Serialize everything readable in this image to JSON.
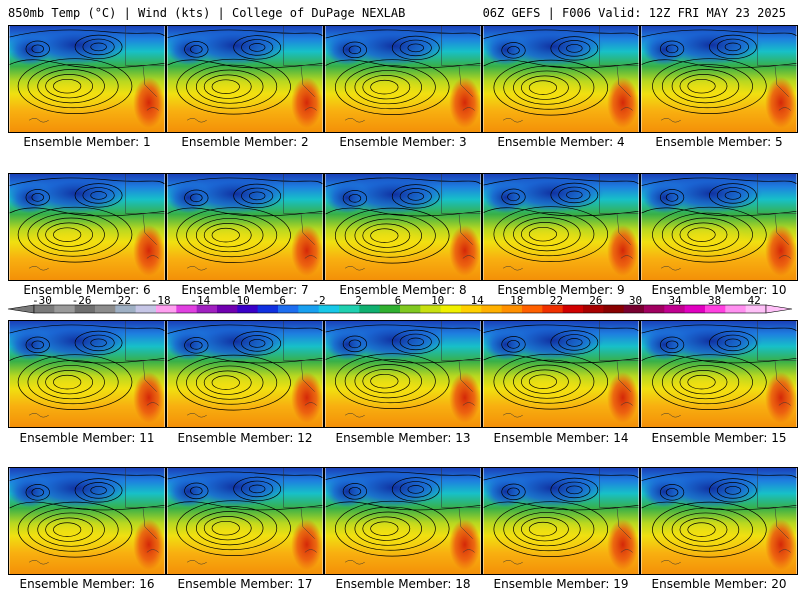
{
  "header": {
    "left": "850mb Temp (°C) | Wind (kts) | College of DuPage NEXLAB",
    "right": "06Z GEFS | F006 Valid: 12Z FRI MAY 23 2025"
  },
  "members": [
    "Ensemble Member: 1",
    "Ensemble Member: 2",
    "Ensemble Member: 3",
    "Ensemble Member: 4",
    "Ensemble Member: 5",
    "Ensemble Member: 6",
    "Ensemble Member: 7",
    "Ensemble Member: 8",
    "Ensemble Member: 9",
    "Ensemble Member: 10",
    "Ensemble Member: 11",
    "Ensemble Member: 12",
    "Ensemble Member: 13",
    "Ensemble Member: 14",
    "Ensemble Member: 15",
    "Ensemble Member: 16",
    "Ensemble Member: 17",
    "Ensemble Member: 18",
    "Ensemble Member: 19",
    "Ensemble Member: 20"
  ],
  "colorbar": {
    "ticks": [
      "-30",
      "-26",
      "-22",
      "-18",
      "-14",
      "-10",
      "-6",
      "-2",
      "2",
      "6",
      "10",
      "14",
      "18",
      "22",
      "26",
      "30",
      "34",
      "38",
      "42"
    ],
    "colors": [
      "#7a7a7a",
      "#9a9a9a",
      "#6f6f6f",
      "#8c8c8c",
      "#9fb0c4",
      "#c6c6e6",
      "#ff9ff0",
      "#e040e0",
      "#a020c0",
      "#7000b0",
      "#3a00c8",
      "#1030e0",
      "#1e6ef0",
      "#19a0f0",
      "#18c8e8",
      "#20d0b0",
      "#10b070",
      "#30b030",
      "#80c820",
      "#c8e010",
      "#f0f000",
      "#ffd000",
      "#ffb000",
      "#ff9000",
      "#ff6000",
      "#f03000",
      "#d00000",
      "#a80000",
      "#880000",
      "#780030",
      "#a00060",
      "#c00090",
      "#e000c0",
      "#ff40e0",
      "#ff90f0",
      "#ffc0f8"
    ]
  },
  "map_palette": {
    "cold": "#1a5fd0",
    "cool": "#17c0c8",
    "mid": "#38b048",
    "warm": "#d8e820",
    "hot": "#f4a010",
    "hottest": "#e63a10",
    "contour": "#000000"
  }
}
